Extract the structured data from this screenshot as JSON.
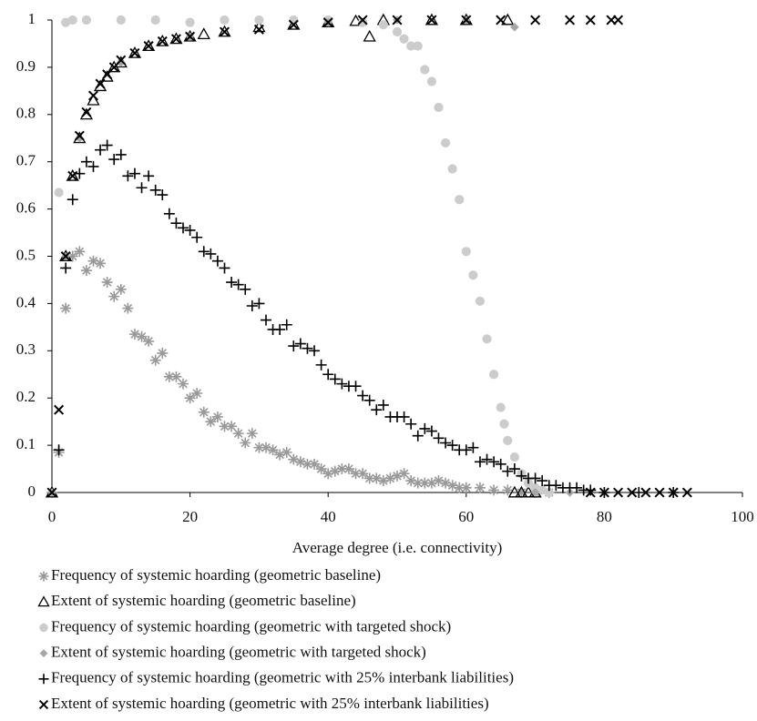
{
  "chart_data": {
    "type": "scatter",
    "x_label": "Average degree (i.e. connectivity)",
    "xlim": [
      0,
      100
    ],
    "xticks": [
      0,
      20,
      40,
      60,
      80,
      100
    ],
    "ylim": [
      0,
      1
    ],
    "yticks": [
      0,
      0.1,
      0.2,
      0.3,
      0.4,
      0.5,
      0.6,
      0.7,
      0.8,
      0.9,
      1
    ],
    "series": [
      {
        "name": "Frequency of systemic hoarding (geometric baseline)",
        "marker": "asterisk",
        "color": "#999999",
        "x": [
          0,
          1,
          2,
          3,
          4,
          5,
          6,
          7,
          8,
          9,
          10,
          11,
          12,
          13,
          14,
          15,
          16,
          17,
          18,
          19,
          20,
          21,
          22,
          23,
          24,
          25,
          26,
          27,
          28,
          29,
          30,
          31,
          32,
          33,
          34,
          35,
          36,
          37,
          38,
          39,
          40,
          41,
          42,
          43,
          44,
          45,
          46,
          47,
          48,
          49,
          50,
          51,
          52,
          53,
          54,
          55,
          56,
          57,
          58,
          59,
          60,
          62,
          64,
          66,
          68,
          70,
          72
        ],
        "values": [
          0,
          0.085,
          0.39,
          0.5,
          0.51,
          0.47,
          0.49,
          0.485,
          0.445,
          0.415,
          0.43,
          0.39,
          0.335,
          0.33,
          0.32,
          0.28,
          0.295,
          0.245,
          0.245,
          0.23,
          0.2,
          0.21,
          0.17,
          0.15,
          0.16,
          0.14,
          0.14,
          0.125,
          0.105,
          0.125,
          0.095,
          0.095,
          0.09,
          0.08,
          0.085,
          0.07,
          0.065,
          0.06,
          0.06,
          0.05,
          0.04,
          0.045,
          0.05,
          0.05,
          0.04,
          0.04,
          0.03,
          0.03,
          0.025,
          0.03,
          0.035,
          0.04,
          0.025,
          0.02,
          0.02,
          0.02,
          0.025,
          0.02,
          0.015,
          0.01,
          0.01,
          0.01,
          0.005,
          0.005,
          0,
          0,
          0
        ]
      },
      {
        "name": "Extent of systemic hoarding (geometric baseline)",
        "marker": "triangle",
        "color": "#000000",
        "x": [
          0,
          2,
          3,
          4,
          5,
          6,
          7,
          8,
          9,
          10,
          12,
          14,
          16,
          18,
          20,
          22,
          25,
          30,
          35,
          40,
          44,
          46,
          48,
          55,
          60,
          66,
          67,
          68,
          69,
          70
        ],
        "values": [
          0,
          0.5,
          0.67,
          0.75,
          0.8,
          0.83,
          0.86,
          0.88,
          0.9,
          0.91,
          0.93,
          0.945,
          0.955,
          0.96,
          0.965,
          0.97,
          0.975,
          0.985,
          0.99,
          0.995,
          0.998,
          0.965,
          1,
          1,
          1,
          1,
          0,
          0,
          0,
          0
        ]
      },
      {
        "name": "Frequency of systemic hoarding (geometric with targeted shock)",
        "marker": "circle",
        "color": "#cccccc",
        "x": [
          1,
          2,
          3,
          5,
          10,
          15,
          20,
          25,
          30,
          35,
          40,
          45,
          48,
          50,
          51,
          52,
          53,
          54,
          55,
          56,
          57,
          58,
          59,
          60,
          61,
          62,
          63,
          64,
          65,
          65.5,
          66,
          67,
          68,
          69,
          70,
          71,
          72
        ],
        "values": [
          0.635,
          0.995,
          1,
          1,
          1,
          1,
          0.995,
          1,
          1,
          1,
          1,
          0.995,
          0.99,
          0.975,
          0.96,
          0.945,
          0.945,
          0.895,
          0.87,
          0.815,
          0.74,
          0.685,
          0.62,
          0.51,
          0.46,
          0.405,
          0.325,
          0.25,
          0.18,
          0.145,
          0.11,
          0.075,
          0.04,
          0.02,
          0.01,
          0.005,
          0
        ]
      },
      {
        "name": "Extent of systemic hoarding (geometric with targeted shock)",
        "marker": "diamond",
        "color": "#a6a6a6",
        "x": [
          0,
          2,
          4,
          10,
          20,
          40,
          50,
          60,
          67,
          70,
          75
        ],
        "values": [
          0,
          0.5,
          0.75,
          0.91,
          0.965,
          0.995,
          1,
          1,
          0.985,
          0,
          0
        ]
      },
      {
        "name": "Frequency of systemic hoarding (geometric with 25% interbank liabilities)",
        "marker": "plus",
        "color": "#000000",
        "x": [
          1,
          2,
          3,
          4,
          5,
          6,
          7,
          8,
          9,
          10,
          11,
          12,
          13,
          14,
          15,
          16,
          17,
          18,
          19,
          20,
          21,
          22,
          23,
          24,
          25,
          26,
          27,
          28,
          29,
          30,
          31,
          32,
          33,
          34,
          35,
          36,
          37,
          38,
          39,
          40,
          41,
          42,
          43,
          44,
          45,
          46,
          47,
          48,
          49,
          50,
          51,
          52,
          53,
          54,
          55,
          56,
          57,
          58,
          59,
          60,
          61,
          62,
          63,
          64,
          65,
          66,
          67,
          68,
          69,
          70,
          71,
          72,
          73,
          74,
          75,
          76,
          77,
          78,
          80,
          85,
          90
        ],
        "values": [
          0.09,
          0.475,
          0.62,
          0.675,
          0.7,
          0.69,
          0.725,
          0.735,
          0.705,
          0.715,
          0.67,
          0.675,
          0.645,
          0.67,
          0.64,
          0.63,
          0.59,
          0.57,
          0.56,
          0.555,
          0.54,
          0.51,
          0.505,
          0.49,
          0.475,
          0.445,
          0.44,
          0.43,
          0.395,
          0.4,
          0.365,
          0.345,
          0.345,
          0.355,
          0.31,
          0.315,
          0.305,
          0.3,
          0.27,
          0.25,
          0.24,
          0.23,
          0.225,
          0.225,
          0.205,
          0.195,
          0.175,
          0.185,
          0.16,
          0.16,
          0.16,
          0.145,
          0.12,
          0.135,
          0.13,
          0.115,
          0.105,
          0.1,
          0.09,
          0.09,
          0.095,
          0.065,
          0.07,
          0.065,
          0.06,
          0.045,
          0.05,
          0.035,
          0.03,
          0.03,
          0.025,
          0.015,
          0.015,
          0.01,
          0.01,
          0.01,
          0.005,
          0.005,
          0,
          0,
          0
        ]
      },
      {
        "name": "Extent of systemic hoarding (geometric with 25% interbank liabilities)",
        "marker": "x",
        "color": "#000000",
        "x": [
          0,
          1,
          2,
          3,
          4,
          5,
          6,
          7,
          8,
          9,
          10,
          12,
          14,
          16,
          18,
          20,
          25,
          30,
          35,
          40,
          45,
          50,
          55,
          60,
          65,
          70,
          75,
          78,
          81,
          82,
          78,
          80,
          82,
          84,
          86,
          88,
          90,
          92
        ],
        "values": [
          0,
          0.175,
          0.5,
          0.67,
          0.755,
          0.805,
          0.84,
          0.865,
          0.885,
          0.9,
          0.915,
          0.93,
          0.945,
          0.955,
          0.96,
          0.965,
          0.975,
          0.98,
          0.99,
          0.995,
          1,
          1,
          1,
          1,
          1,
          1,
          1,
          1,
          1,
          1,
          0,
          0,
          0,
          0,
          0,
          0,
          0,
          0
        ]
      }
    ]
  }
}
